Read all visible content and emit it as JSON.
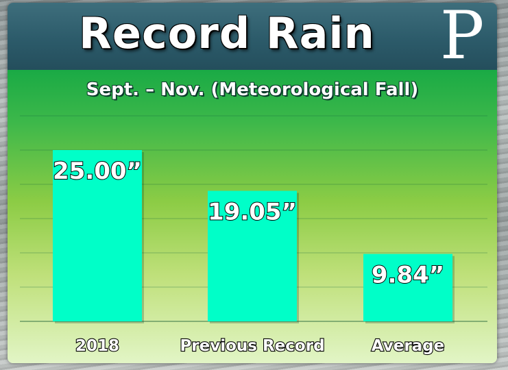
{
  "title": "Record Rain",
  "logo_letter": "P",
  "chart_data": {
    "type": "bar",
    "title": "Record Rain",
    "subtitle": "Sept. – Nov. (Meteorological Fall)",
    "categories": [
      "2018",
      "Previous Record",
      "Average"
    ],
    "values": [
      25.0,
      19.05,
      9.84
    ],
    "value_labels": [
      "25.00”",
      "19.05”",
      "9.84”"
    ],
    "ylim": [
      0,
      25
    ],
    "grid": true,
    "legend": "none",
    "bar_color": "#00ffc8"
  }
}
